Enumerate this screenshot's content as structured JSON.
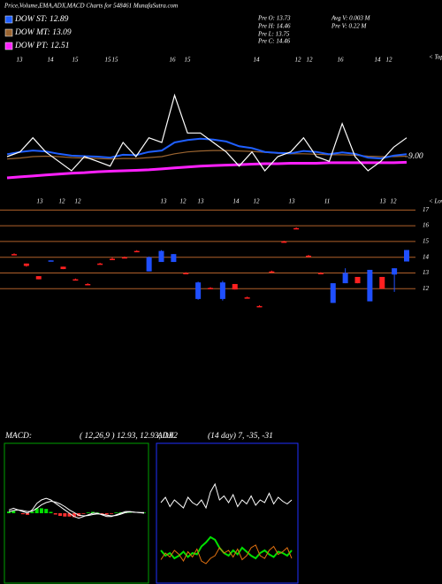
{
  "title": "Price,Volume,EMA,ADX,MACD Charts for 548461 MunafaSutra.com",
  "info": [
    "Pre  O: 13.73",
    "Pre  H: 14.46",
    "Pre  L: 13.75",
    "Pre  C: 14.46",
    "Avg V: 0.003 M",
    "Pre  V: 0.22  M"
  ],
  "chart_data": [
    {
      "type": "line",
      "tops_label": "< Tops",
      "lows_label": "< Lows",
      "tops": [
        "13",
        "14",
        "15",
        "15",
        "15",
        "16",
        "15",
        "14",
        "12",
        "12",
        "16",
        "14",
        "12"
      ],
      "lows": [
        "13",
        "12",
        "12",
        "13",
        "12",
        "13",
        "14",
        "12",
        "13",
        "11",
        "13",
        "12"
      ],
      "ylim": [
        0,
        30
      ],
      "yticks": [
        {
          "value": 9,
          "label": "9.00"
        }
      ],
      "series": [
        {
          "color": "#ffffff",
          "values": [
            9,
            10,
            13,
            10,
            8,
            6,
            9,
            8,
            7,
            12,
            9,
            13,
            12,
            22,
            14,
            14,
            12,
            10,
            7,
            10,
            6,
            9,
            10,
            13,
            9,
            8,
            16,
            9,
            6,
            8,
            11,
            13
          ]
        },
        {
          "name": "DOW MT: 13.09",
          "color": "#9a6430",
          "values": [
            8.5,
            8.7,
            9,
            9.1,
            9,
            8.8,
            8.7,
            8.6,
            8.5,
            8.6,
            8.6,
            8.8,
            9,
            9.6,
            10,
            10.2,
            10.3,
            10.3,
            10.2,
            10.1,
            9.9,
            9.7,
            9.6,
            9.6,
            9.5,
            9.4,
            9.4,
            9.3,
            9.1,
            9,
            9,
            9.1
          ]
        },
        {
          "name": "DOW ST: 12.89",
          "color": "#1f5fff",
          "values": [
            9.5,
            10,
            10.3,
            10.1,
            9.6,
            9.2,
            9.1,
            9,
            8.8,
            9.4,
            9.3,
            10,
            10.3,
            12,
            12.5,
            12.8,
            12.6,
            12.2,
            11.2,
            10.8,
            10,
            9.8,
            9.7,
            10.2,
            10,
            9.5,
            9.9,
            9.6,
            8.8,
            8.6,
            9.2,
            9.5
          ]
        },
        {
          "name": "DOW PT: 12.51",
          "color": "#ff20ff",
          "values": [
            4.5,
            4.7,
            4.9,
            5.1,
            5.3,
            5.5,
            5.6,
            5.8,
            5.9,
            6,
            6.1,
            6.2,
            6.4,
            6.6,
            6.8,
            7,
            7.1,
            7.2,
            7.3,
            7.4,
            7.5,
            7.5,
            7.6,
            7.6,
            7.6,
            7.7,
            7.7,
            7.7,
            7.7,
            7.7,
            7.7,
            7.8
          ]
        }
      ]
    },
    {
      "type": "candlestick",
      "up_color": "#1f4fff",
      "down_color": "#ff2020",
      "grid_color": "#b0602a",
      "ylim": [
        10.5,
        17.3
      ],
      "yticks": [
        12,
        13,
        14,
        15,
        16,
        17
      ],
      "open": [
        14.2,
        13.6,
        12.8,
        13.75,
        13.4,
        12.6,
        12.3,
        13.6,
        13.9,
        14.0,
        14.4,
        13.1,
        13.7,
        13.7,
        13.0,
        11.35,
        12.05,
        11.35,
        12.3,
        11.45,
        10.9,
        13.1,
        15.0,
        15.85,
        14.1,
        13.0,
        11.1,
        12.35,
        12.75,
        11.2,
        12.75,
        12.9,
        13.73
      ],
      "high": [
        14.25,
        13.6,
        12.8,
        13.8,
        13.4,
        12.65,
        12.35,
        13.65,
        14.0,
        14.05,
        14.45,
        14.05,
        14.45,
        14.2,
        13.05,
        12.45,
        12.1,
        12.5,
        12.3,
        11.5,
        10.95,
        13.15,
        15.05,
        15.9,
        14.15,
        13.05,
        12.35,
        13.3,
        12.75,
        13.2,
        12.75,
        13.3,
        14.46
      ],
      "low": [
        14.15,
        13.4,
        12.6,
        13.75,
        13.25,
        12.55,
        12.25,
        13.55,
        13.85,
        13.95,
        14.35,
        13.1,
        13.7,
        13.7,
        12.95,
        11.3,
        12.0,
        11.25,
        11.95,
        11.4,
        10.85,
        13.05,
        14.95,
        15.8,
        14.05,
        12.95,
        11.1,
        12.35,
        12.35,
        11.2,
        12.0,
        11.8,
        13.75
      ],
      "close": [
        14.2,
        13.45,
        12.6,
        13.8,
        13.25,
        12.6,
        12.3,
        13.6,
        13.9,
        14.0,
        14.4,
        14.0,
        14.4,
        14.2,
        13.0,
        12.4,
        12.05,
        12.4,
        11.95,
        11.45,
        10.9,
        13.1,
        15.0,
        15.85,
        14.1,
        13.0,
        12.35,
        13.0,
        12.35,
        13.2,
        12.0,
        13.3,
        14.46
      ]
    },
    {
      "type": "macd",
      "title": "MACD:",
      "subtitle": "( 12,26,9 ) 12.93, 12.93, 0.02",
      "border_color": "#00a000",
      "pos_color": "#00e000",
      "neg_color": "#ff3030",
      "ylim": [
        -2,
        2
      ],
      "series": [
        {
          "color": "#ffffff",
          "values": [
            0.1,
            0.15,
            0.1,
            0.05,
            0,
            0.1,
            0.3,
            0.4,
            0.45,
            0.4,
            0.3,
            0.2,
            0.1,
            0,
            -0.1,
            -0.15,
            -0.1,
            -0.05,
            0,
            0,
            -0.05,
            -0.1,
            -0.1,
            -0.05,
            0,
            0.05,
            0.05,
            0.03,
            0.02,
            0.02
          ]
        },
        {
          "color": "#ffffff",
          "values": [
            0.05,
            0.08,
            0.1,
            0.08,
            0.05,
            0.06,
            0.15,
            0.25,
            0.32,
            0.36,
            0.34,
            0.28,
            0.2,
            0.1,
            0.02,
            -0.06,
            -0.08,
            -0.07,
            -0.04,
            -0.02,
            -0.03,
            -0.06,
            -0.08,
            -0.07,
            -0.03,
            0.02,
            0.04,
            0.03,
            0.02,
            0.0
          ]
        }
      ],
      "histogram": [
        0.05,
        0.07,
        0,
        -0.03,
        -0.05,
        0.04,
        0.15,
        0.15,
        0.13,
        0.04,
        -0.04,
        -0.08,
        -0.1,
        -0.1,
        -0.12,
        -0.09,
        -0.02,
        0.02,
        0.04,
        0.02,
        -0.02,
        -0.04,
        -0.02,
        0.02,
        0.03,
        0.03,
        0.01,
        0,
        0,
        0.02
      ]
    },
    {
      "type": "adx",
      "title": "ADX",
      "subtitle": "(14  day)  7, -35, -31",
      "border_color": "#2030ff",
      "ylim": [
        0,
        100
      ],
      "series": [
        {
          "color": "#ffffff",
          "values": [
            58,
            62,
            55,
            60,
            57,
            54,
            62,
            58,
            56,
            60,
            54,
            66,
            72,
            60,
            63,
            58,
            64,
            55,
            60,
            57,
            63,
            56,
            60,
            58,
            65,
            57,
            62,
            59,
            57,
            60
          ]
        },
        {
          "color": "#00e000",
          "values": [
            22,
            18,
            20,
            16,
            18,
            21,
            17,
            20,
            19,
            25,
            28,
            32,
            30,
            24,
            20,
            18,
            22,
            19,
            24,
            21,
            18,
            16,
            20,
            22,
            19,
            17,
            21,
            20,
            18,
            22
          ]
        },
        {
          "color": "#e07010",
          "values": [
            15,
            20,
            17,
            22,
            19,
            14,
            21,
            17,
            23,
            14,
            12,
            16,
            18,
            24,
            20,
            22,
            17,
            23,
            15,
            18,
            24,
            26,
            18,
            16,
            22,
            25,
            19,
            21,
            24,
            16
          ]
        }
      ]
    }
  ]
}
